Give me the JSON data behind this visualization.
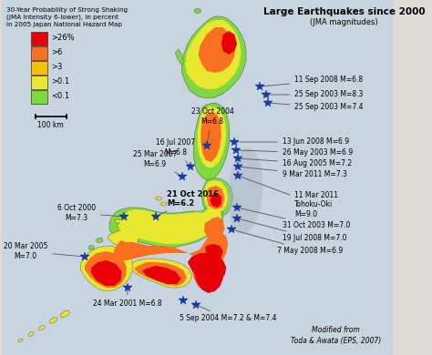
{
  "title": "Large Earthquakes since 2000",
  "subtitle": "(JMA magnitudes)",
  "legend_title": "30-Year Probability of Strong Shaking\n(JMA Intensity 6-lower), in percent\nin 2005 Japan National Hazard Map",
  "legend_colors": [
    "#e80008",
    "#f97020",
    "#f9c000",
    "#e8e830",
    "#80d840"
  ],
  "legend_labels": [
    ">26%",
    ">6",
    ">3",
    ">0.1",
    "<0.1"
  ],
  "ocean_color": "#c8d4e0",
  "bg_color": "#dedad4",
  "figsize": [
    4.74,
    3.9
  ],
  "dpi": 100
}
